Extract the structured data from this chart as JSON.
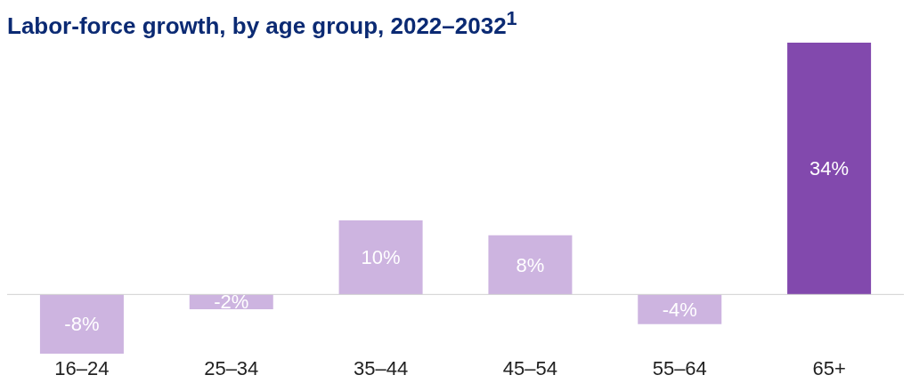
{
  "chart_data": {
    "type": "bar",
    "title": "Labor-force growth, by age group, 2022–2032$^{1}$",
    "categories": [
      "16–24",
      "25–34",
      "35–44",
      "45–54",
      "55–64",
      "65+"
    ],
    "values": [
      -8,
      -2,
      10,
      8,
      -4,
      34
    ],
    "colors": [
      "#cdb4e0",
      "#cdb4e0",
      "#cdb4e0",
      "#cdb4e0",
      "#cdb4e0",
      "#8249ad"
    ],
    "value_labels": [
      "-8%",
      "-2%",
      "10%",
      "8%",
      "-4%",
      "34%"
    ]
  }
}
